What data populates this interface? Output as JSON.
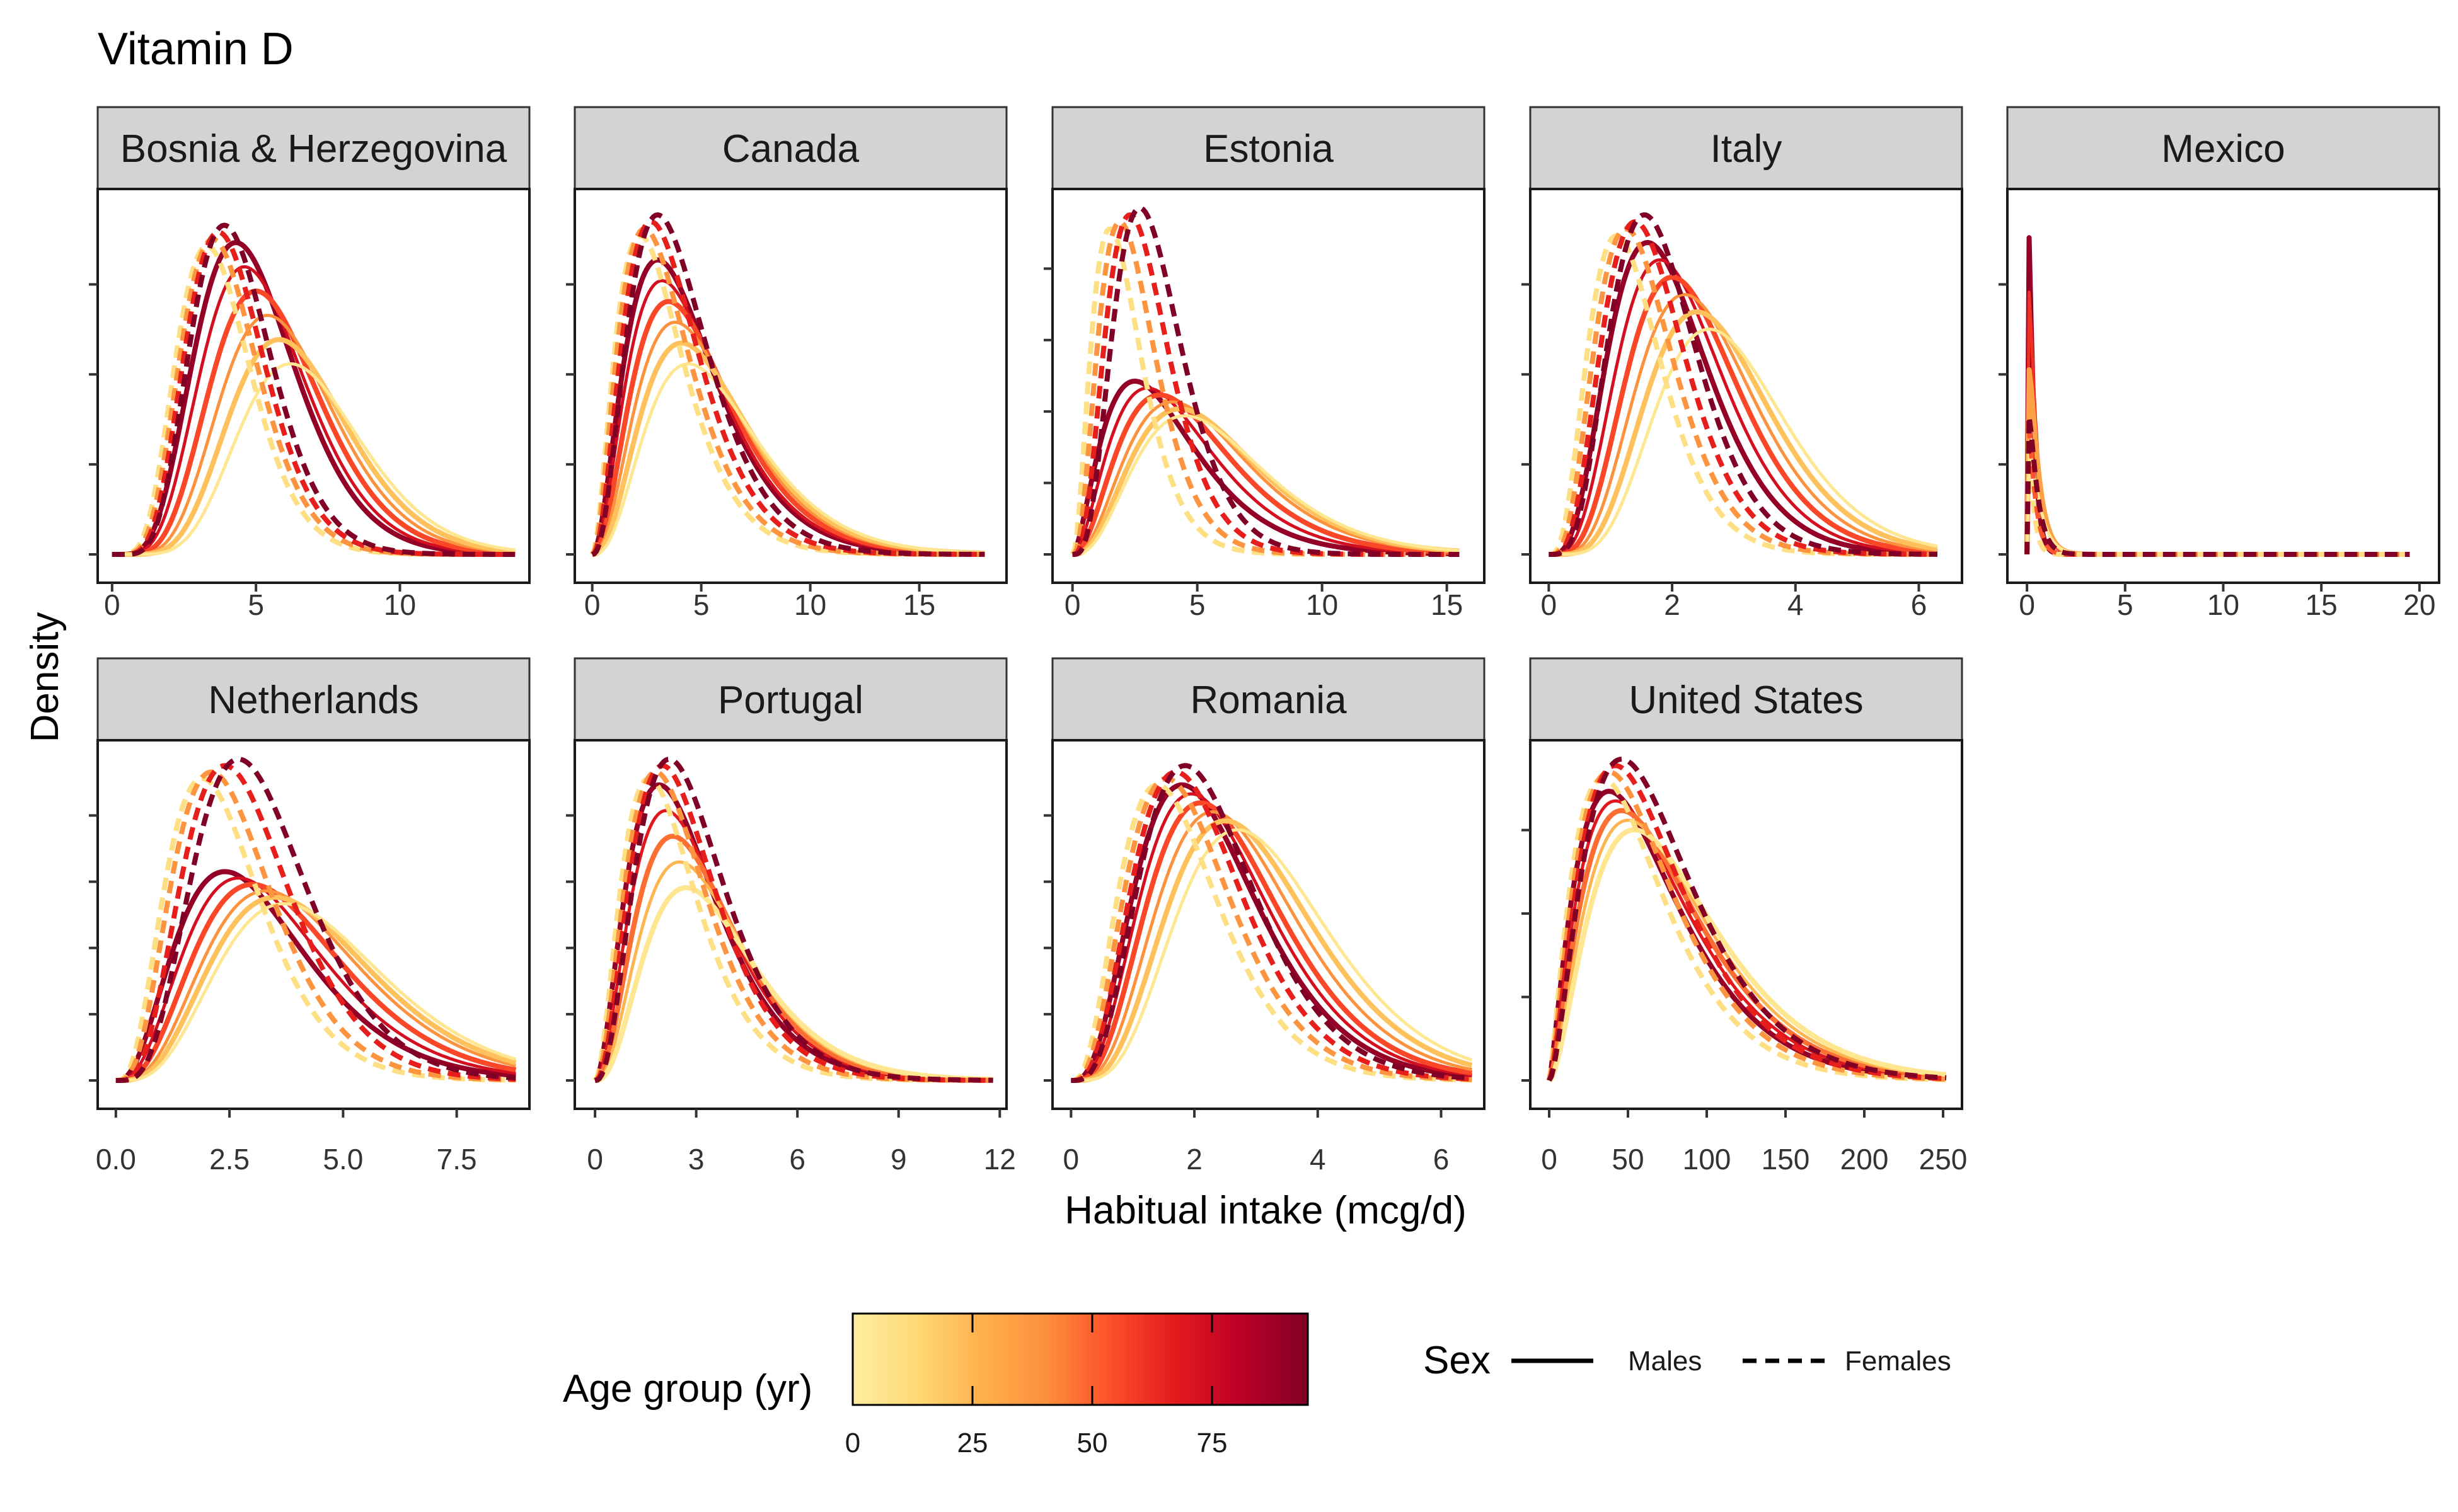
{
  "title": "Vitamin D",
  "x_axis_title": "Habitual intake (mcg/d)",
  "y_axis_title": "Density",
  "legend": {
    "age_title": "Age group (yr)",
    "age_ticks": [
      "0",
      "25",
      "50",
      "75"
    ],
    "age_range": [
      0,
      95
    ],
    "age_colors": [
      "#FFEDA0",
      "#FED976",
      "#FEB24C",
      "#FD8D3C",
      "#FC4E2A",
      "#E31A1C",
      "#BD0026",
      "#800026"
    ],
    "sex_title": "Sex",
    "sex_items": [
      {
        "label": "Males",
        "linetype": "solid"
      },
      {
        "label": "Females",
        "linetype": "dashed"
      }
    ]
  },
  "chart_data": [
    {
      "type": "line",
      "panel": "Bosnia & Herzegovina",
      "xlim": [
        -0.5,
        14.5
      ],
      "ticks": [
        0,
        5,
        10
      ],
      "tick_labels": [
        "0",
        "5",
        "10"
      ],
      "x_max": 14,
      "y_ticks": 4,
      "male_modes": [
        4.3,
        4.6,
        5.0,
        5.4,
        5.8,
        6.2
      ],
      "female_modes": [
        3.3,
        3.5,
        3.7,
        3.9
      ],
      "male_sd": 1.2,
      "female_sd": 0.85,
      "male_peak_hi": 0.9,
      "male_peak_lo": 0.55,
      "female_peak": 0.95
    },
    {
      "type": "line",
      "panel": "Canada",
      "xlim": [
        -0.8,
        19
      ],
      "ticks": [
        0,
        5,
        10,
        15
      ],
      "tick_labels": [
        "0",
        "5",
        "10",
        "15"
      ],
      "x_max": 18,
      "y_ticks": 4,
      "male_modes": [
        3.0,
        3.2,
        3.5,
        3.8,
        4.1,
        4.4
      ],
      "female_modes": [
        2.2,
        2.4,
        2.7,
        3.0
      ],
      "male_sd": 2.6,
      "female_sd": 2.0,
      "male_peak_hi": 0.85,
      "male_peak_lo": 0.55,
      "female_peak": 0.98
    },
    {
      "type": "line",
      "panel": "Estonia",
      "xlim": [
        -0.8,
        16.5
      ],
      "ticks": [
        0,
        5,
        10,
        15
      ],
      "tick_labels": [
        "0",
        "5",
        "10",
        "15"
      ],
      "x_max": 15.5,
      "y_ticks": 5,
      "male_modes": [
        2.5,
        3.0,
        3.5,
        4.0,
        4.3,
        4.5
      ],
      "female_modes": [
        1.5,
        1.9,
        2.3,
        2.7
      ],
      "male_sd": 2.6,
      "female_sd": 1.2,
      "male_peak_hi": 0.5,
      "male_peak_lo": 0.4,
      "female_peak": 1.0
    },
    {
      "type": "line",
      "panel": "Italy",
      "xlim": [
        -0.3,
        6.7
      ],
      "ticks": [
        0,
        2,
        4,
        6
      ],
      "tick_labels": [
        "0",
        "2",
        "4",
        "6"
      ],
      "x_max": 6.3,
      "y_ticks": 4,
      "male_modes": [
        1.6,
        1.8,
        2.0,
        2.2,
        2.4,
        2.6
      ],
      "female_modes": [
        1.1,
        1.25,
        1.4,
        1.55
      ],
      "male_sd": 0.7,
      "female_sd": 0.55,
      "male_peak_hi": 0.9,
      "male_peak_lo": 0.65,
      "female_peak": 0.98
    },
    {
      "type": "line",
      "panel": "Mexico",
      "xlim": [
        -1,
        21
      ],
      "ticks": [
        0,
        5,
        10,
        15,
        20
      ],
      "tick_labels": [
        "0",
        "5",
        "10",
        "15",
        "20"
      ],
      "x_max": 19.5,
      "y_ticks": 4,
      "male_modes": [
        0.05,
        0.08,
        0.1,
        0.12
      ],
      "female_modes": [
        0.05,
        0.07,
        0.09
      ],
      "male_sd": 2.8,
      "female_sd": 2.5,
      "male_peak_hi": 1.0,
      "male_peak_lo": 0.3,
      "female_peak": 0.4
    },
    {
      "type": "line",
      "panel": "Netherlands",
      "xlim": [
        -0.4,
        9.1
      ],
      "ticks": [
        0,
        2.5,
        5,
        7.5
      ],
      "tick_labels": [
        "0.0",
        "2.5",
        "5.0",
        "7.5"
      ],
      "x_max": 8.8,
      "y_ticks": 5,
      "male_modes": [
        2.4,
        2.7,
        3.0,
        3.3,
        3.5,
        3.7
      ],
      "female_modes": [
        1.9,
        2.1,
        2.4,
        2.7
      ],
      "male_sd": 1.5,
      "female_sd": 1.0,
      "male_peak_hi": 0.65,
      "male_peak_lo": 0.55,
      "female_peak": 1.0
    },
    {
      "type": "line",
      "panel": "Portugal",
      "xlim": [
        -0.6,
        12.2
      ],
      "ticks": [
        0,
        3,
        6,
        9,
        12
      ],
      "tick_labels": [
        "0",
        "3",
        "6",
        "9",
        "12"
      ],
      "x_max": 11.8,
      "y_ticks": 5,
      "male_modes": [
        1.9,
        2.1,
        2.3,
        2.5,
        2.7
      ],
      "female_modes": [
        1.6,
        1.8,
        2.0,
        2.2
      ],
      "male_sd": 1.7,
      "female_sd": 1.4,
      "male_peak_hi": 0.92,
      "male_peak_lo": 0.6,
      "female_peak": 1.0
    },
    {
      "type": "line",
      "panel": "Romania",
      "xlim": [
        -0.3,
        6.7
      ],
      "ticks": [
        0,
        2,
        4,
        6
      ],
      "tick_labels": [
        "0",
        "2",
        "4",
        "6"
      ],
      "x_max": 6.5,
      "y_ticks": 5,
      "male_modes": [
        1.8,
        1.95,
        2.1,
        2.3,
        2.5,
        2.7
      ],
      "female_modes": [
        1.4,
        1.55,
        1.7,
        1.85
      ],
      "male_sd": 0.95,
      "female_sd": 0.8,
      "male_peak_hi": 0.92,
      "male_peak_lo": 0.78,
      "female_peak": 0.98
    },
    {
      "type": "line",
      "panel": "United States",
      "xlim": [
        -12,
        262
      ],
      "ticks": [
        0,
        50,
        100,
        150,
        200,
        250
      ],
      "tick_labels": [
        "0",
        "50",
        "100",
        "150",
        "200",
        "250"
      ],
      "x_max": 252,
      "y_ticks": 4,
      "male_modes": [
        38,
        42,
        46,
        50,
        54
      ],
      "female_modes": [
        34,
        38,
        42,
        46
      ],
      "male_sd": 55,
      "female_sd": 48,
      "male_peak_hi": 0.9,
      "male_peak_lo": 0.78,
      "female_peak": 1.0
    }
  ]
}
